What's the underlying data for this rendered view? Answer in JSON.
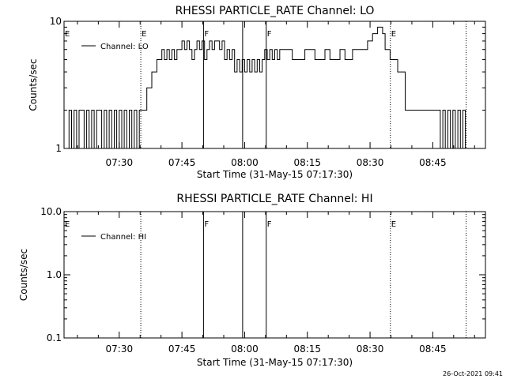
{
  "chart_data": [
    {
      "type": "line",
      "title": "RHESSI PARTICLE_RATE Channel: LO",
      "xlabel": "Start Time (31-May-15 07:17:30)",
      "ylabel": "Counts/sec",
      "yscale": "log",
      "ylim": [
        1,
        10
      ],
      "xlim": [
        7.28,
        8.96
      ],
      "xticks": [
        {
          "value": 7.5,
          "label": "07:30"
        },
        {
          "value": 7.75,
          "label": "07:45"
        },
        {
          "value": 8.0,
          "label": "08:00"
        },
        {
          "value": 8.25,
          "label": "08:15"
        },
        {
          "value": 8.5,
          "label": "08:30"
        },
        {
          "value": 8.75,
          "label": "08:45"
        }
      ],
      "yticks": [
        {
          "value": 1,
          "label": "1"
        },
        {
          "value": 10,
          "label": "10"
        }
      ],
      "legend": {
        "entries": [
          "Channel: LO"
        ],
        "placement": "top-left"
      },
      "markers": [
        {
          "time": 7.586,
          "style": "dotted",
          "label": "E"
        },
        {
          "time": 7.836,
          "style": "solid",
          "label": "F"
        },
        {
          "time": 7.992,
          "style": "solid",
          "label": ""
        },
        {
          "time": 8.086,
          "style": "solid",
          "label": "F"
        },
        {
          "time": 8.581,
          "style": "dotted",
          "label": "E"
        },
        {
          "time": 8.883,
          "style": "dotted",
          "label": ""
        }
      ],
      "axis_edge_label": "E",
      "series": [
        {
          "x": [
            7.29,
            7.3,
            7.31,
            7.32,
            7.33,
            7.34,
            7.35,
            7.36,
            7.37,
            7.38,
            7.39,
            7.4,
            7.41,
            7.42,
            7.43,
            7.44,
            7.45,
            7.46,
            7.47,
            7.48,
            7.49,
            7.5,
            7.51,
            7.52,
            7.53,
            7.54,
            7.55,
            7.56,
            7.57,
            7.58,
            7.59,
            7.6,
            7.61,
            7.62,
            7.63,
            7.64,
            7.65,
            7.66,
            7.67,
            7.68,
            7.69,
            7.7,
            7.71,
            7.72,
            7.73,
            7.74,
            7.75,
            7.76,
            7.77,
            7.78,
            7.79,
            7.8,
            7.81,
            7.82,
            7.83,
            7.84,
            7.85,
            7.86,
            7.87,
            7.88,
            7.89,
            7.9,
            7.91,
            7.92,
            7.93,
            7.94,
            7.95,
            7.96,
            7.97,
            7.98,
            7.99,
            8.0,
            8.01,
            8.02,
            8.03,
            8.04,
            8.05,
            8.06,
            8.07,
            8.08,
            8.09,
            8.1,
            8.11,
            8.12,
            8.13,
            8.14,
            8.15,
            8.16,
            8.17,
            8.18,
            8.19,
            8.2,
            8.21,
            8.22,
            8.23,
            8.24,
            8.25,
            8.26,
            8.27,
            8.28,
            8.29,
            8.3,
            8.31,
            8.32,
            8.33,
            8.34,
            8.35,
            8.36,
            8.37,
            8.38,
            8.39,
            8.4,
            8.41,
            8.42,
            8.43,
            8.44,
            8.45,
            8.46,
            8.47,
            8.48,
            8.49,
            8.5,
            8.51,
            8.52,
            8.53,
            8.54,
            8.55,
            8.56,
            8.57,
            8.58,
            8.59,
            8.6,
            8.61,
            8.62,
            8.63,
            8.64,
            8.65,
            8.66,
            8.67,
            8.68,
            8.69,
            8.7,
            8.71,
            8.72,
            8.73,
            8.74,
            8.75,
            8.76,
            8.77,
            8.78,
            8.79,
            8.8,
            8.81,
            8.82,
            8.83,
            8.84,
            8.85,
            8.86,
            8.87,
            8.88
          ],
          "y": [
            1,
            2,
            1,
            2,
            1,
            2,
            2,
            1,
            2,
            1,
            2,
            1,
            2,
            2,
            1,
            2,
            1,
            2,
            1,
            2,
            1,
            2,
            1,
            2,
            1,
            2,
            1,
            2,
            1,
            2,
            2,
            2,
            3,
            3,
            4,
            4,
            5,
            5,
            6,
            5,
            6,
            5,
            6,
            5,
            6,
            6,
            7,
            6,
            7,
            6,
            5,
            6,
            7,
            6,
            7,
            5,
            6,
            7,
            6,
            7,
            7,
            6,
            7,
            5,
            6,
            5,
            6,
            4,
            5,
            4,
            5,
            4,
            5,
            4,
            5,
            4,
            5,
            4,
            5,
            6,
            5,
            6,
            5,
            6,
            5,
            6,
            6,
            6,
            6,
            6,
            5,
            5,
            5,
            5,
            5,
            6,
            6,
            6,
            6,
            5,
            5,
            5,
            5,
            6,
            6,
            5,
            5,
            5,
            5,
            6,
            6,
            5,
            5,
            5,
            6,
            6,
            6,
            6,
            6,
            6,
            7,
            7,
            8,
            8,
            9,
            9,
            8,
            6,
            6,
            5,
            5,
            5,
            4,
            4,
            4,
            2,
            2,
            2,
            2,
            2,
            2,
            2,
            2,
            2,
            2,
            2,
            2,
            2,
            2,
            1,
            2,
            1,
            2,
            1,
            2,
            1,
            2,
            1,
            2,
            1
          ]
        }
      ]
    },
    {
      "type": "line",
      "title": "RHESSI PARTICLE_RATE Channel: HI",
      "xlabel": "Start Time (31-May-15 07:17:30)",
      "ylabel": "Counts/sec",
      "yscale": "log",
      "ylim": [
        0.1,
        10.0
      ],
      "xlim": [
        7.28,
        8.96
      ],
      "xticks": [
        {
          "value": 7.5,
          "label": "07:30"
        },
        {
          "value": 7.75,
          "label": "07:45"
        },
        {
          "value": 8.0,
          "label": "08:00"
        },
        {
          "value": 8.25,
          "label": "08:15"
        },
        {
          "value": 8.5,
          "label": "08:30"
        },
        {
          "value": 8.75,
          "label": "08:45"
        }
      ],
      "yticks": [
        {
          "value": 0.1,
          "label": "0.1"
        },
        {
          "value": 1.0,
          "label": "1.0"
        },
        {
          "value": 10.0,
          "label": "10.0"
        }
      ],
      "legend": {
        "entries": [
          "Channel: HI"
        ],
        "placement": "top-left"
      },
      "markers": [
        {
          "time": 7.586,
          "style": "dotted",
          "label": ""
        },
        {
          "time": 7.836,
          "style": "solid",
          "label": "F"
        },
        {
          "time": 7.992,
          "style": "solid",
          "label": ""
        },
        {
          "time": 8.086,
          "style": "solid",
          "label": "F"
        },
        {
          "time": 8.581,
          "style": "dotted",
          "label": "E"
        },
        {
          "time": 8.883,
          "style": "dotted",
          "label": ""
        }
      ],
      "axis_edge_label": "E",
      "series": []
    }
  ],
  "timestamp": "26-Oct-2021 09:41"
}
